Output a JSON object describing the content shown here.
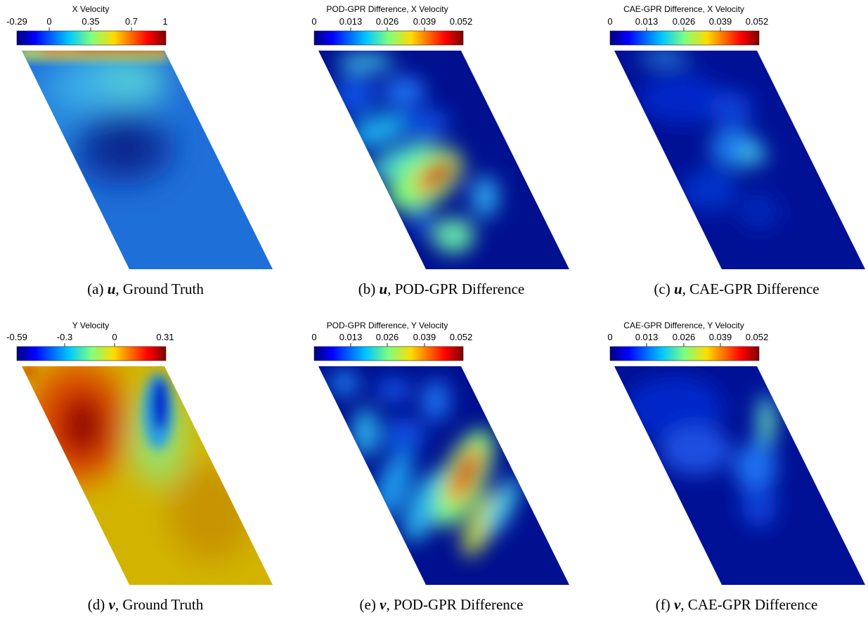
{
  "colormap": {
    "jet": [
      "#00007f",
      "#0000ff",
      "#007fff",
      "#00ffff",
      "#7fff7f",
      "#ffff00",
      "#ff7f00",
      "#ff0000",
      "#7f0000"
    ]
  },
  "panels": [
    {
      "id": "a",
      "colorbar": {
        "title": "X Velocity",
        "ticks": [
          "-0.29",
          "0",
          "0.35",
          "0.7",
          "1"
        ],
        "range": [
          -0.29,
          1
        ]
      },
      "caption": {
        "label": "(a)",
        "var": "u",
        "text": "Ground Truth"
      }
    },
    {
      "id": "b",
      "colorbar": {
        "title": "POD-GPR Difference, X Velocity",
        "ticks": [
          "0",
          "0.013",
          "0.026",
          "0.039",
          "0.052"
        ],
        "range": [
          0,
          0.052
        ]
      },
      "caption": {
        "label": "(b)",
        "var": "u",
        "text": "POD-GPR Difference"
      }
    },
    {
      "id": "c",
      "colorbar": {
        "title": "CAE-GPR Difference, X Velocity",
        "ticks": [
          "0",
          "0.013",
          "0.026",
          "0.039",
          "0.052"
        ],
        "range": [
          0,
          0.052
        ]
      },
      "caption": {
        "label": "(c)",
        "var": "u",
        "text": "CAE-GPR Difference"
      }
    },
    {
      "id": "d",
      "colorbar": {
        "title": "Y Velocity",
        "ticks": [
          "-0.59",
          "-0.3",
          "0",
          "0.31"
        ],
        "range": [
          -0.59,
          0.31
        ]
      },
      "caption": {
        "label": "(d)",
        "var": "v",
        "text": "Ground Truth"
      }
    },
    {
      "id": "e",
      "colorbar": {
        "title": "POD-GPR Difference, Y Velocity",
        "ticks": [
          "0",
          "0.013",
          "0.026",
          "0.039",
          "0.052"
        ],
        "range": [
          0,
          0.052
        ]
      },
      "caption": {
        "label": "(e)",
        "var": "v",
        "text": "POD-GPR Difference"
      }
    },
    {
      "id": "f",
      "colorbar": {
        "title": "CAE-GPR Difference, Y Velocity",
        "ticks": [
          "0",
          "0.013",
          "0.026",
          "0.039",
          "0.052"
        ],
        "range": [
          0,
          0.052
        ]
      },
      "caption": {
        "label": "(f)",
        "var": "v",
        "text": "CAE-GPR Difference"
      }
    }
  ]
}
